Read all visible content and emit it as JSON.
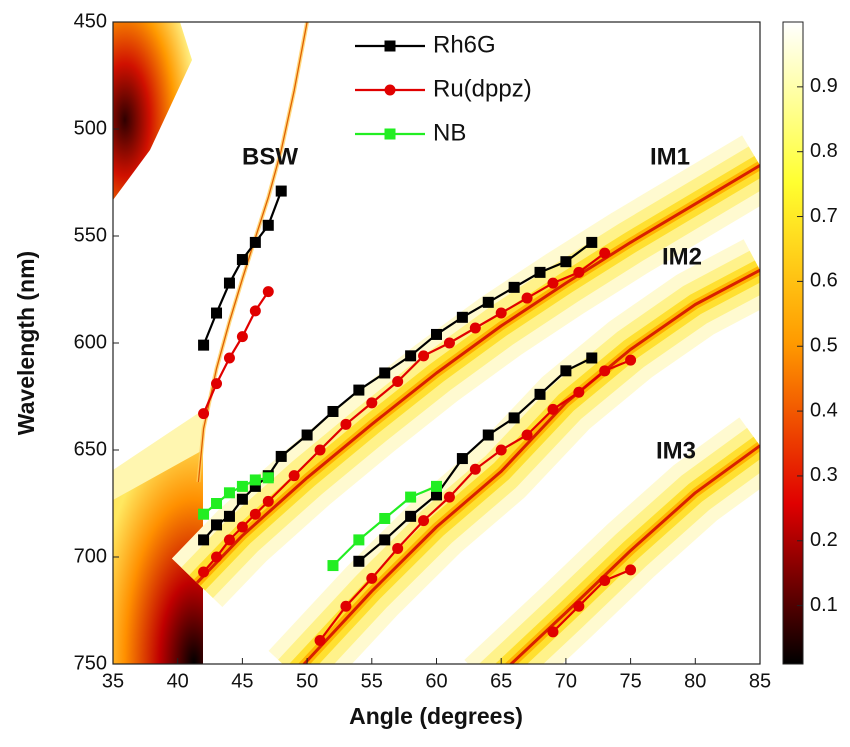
{
  "chart_data": {
    "type": "line",
    "xlabel": "Angle (degrees)",
    "ylabel": "Wavelength (nm)",
    "annotations": [
      "BSW",
      "IM1",
      "IM2",
      "IM3"
    ],
    "xlim": [
      35,
      85
    ],
    "xticks": [
      35,
      40,
      45,
      50,
      55,
      60,
      65,
      70,
      75,
      80,
      85
    ],
    "ylim": [
      750,
      450
    ],
    "yticks": [
      450,
      500,
      550,
      600,
      650,
      700,
      750
    ],
    "legend": "upper center",
    "colorbar": {
      "clim": [
        0.01,
        1.0
      ],
      "ticks": [
        0.1,
        0.2,
        0.3,
        0.4,
        0.5,
        0.6,
        0.7,
        0.8,
        0.9
      ],
      "colormap": [
        "#000000",
        "#e00000",
        "#ff9a00",
        "#ffff30",
        "#ffffff"
      ]
    },
    "series": [
      {
        "name": "Rh6G",
        "color": "#000000",
        "marker": "square",
        "x": [
          42,
          43,
          44,
          45,
          46,
          47,
          48,
          null,
          42,
          43,
          44,
          45,
          46,
          47,
          48,
          50,
          52,
          54,
          56,
          58,
          60,
          62,
          64,
          66,
          68,
          70,
          72,
          null,
          54,
          56,
          58,
          60,
          62,
          64,
          66,
          68,
          70,
          72
        ],
        "values": [
          601,
          586,
          572,
          561,
          553,
          545,
          529,
          null,
          692,
          685,
          681,
          673,
          667,
          662,
          653,
          643,
          632,
          622,
          614,
          606,
          596,
          588,
          581,
          574,
          567,
          562,
          553,
          null,
          702,
          692,
          681,
          671,
          654,
          643,
          635,
          624,
          613,
          607
        ]
      },
      {
        "name": "Ru(dppz)",
        "color": "#e00000",
        "marker": "circle",
        "x": [
          42,
          43,
          44,
          45,
          46,
          47,
          null,
          42,
          43,
          44,
          45,
          46,
          47,
          49,
          51,
          53,
          55,
          57,
          59,
          61,
          63,
          65,
          67,
          69,
          71,
          73,
          null,
          51,
          53,
          55,
          57,
          59,
          61,
          63,
          65,
          67,
          69,
          71,
          73,
          75,
          null,
          69,
          71,
          73,
          75
        ],
        "values": [
          633,
          619,
          607,
          597,
          585,
          576,
          null,
          707,
          700,
          692,
          686,
          680,
          674,
          662,
          650,
          638,
          628,
          618,
          606,
          600,
          593,
          586,
          579,
          572,
          567,
          558,
          null,
          739,
          723,
          710,
          696,
          683,
          672,
          659,
          650,
          643,
          631,
          623,
          613,
          608,
          null,
          735,
          723,
          711,
          706
        ]
      },
      {
        "name": "NB",
        "color": "#22ee22",
        "marker": "square",
        "x": [
          42,
          43,
          44,
          45,
          46,
          47,
          null,
          52,
          54,
          56,
          58,
          60
        ],
        "values": [
          680,
          675,
          670,
          667,
          664,
          663,
          null,
          704,
          692,
          682,
          672,
          667
        ]
      }
    ]
  }
}
